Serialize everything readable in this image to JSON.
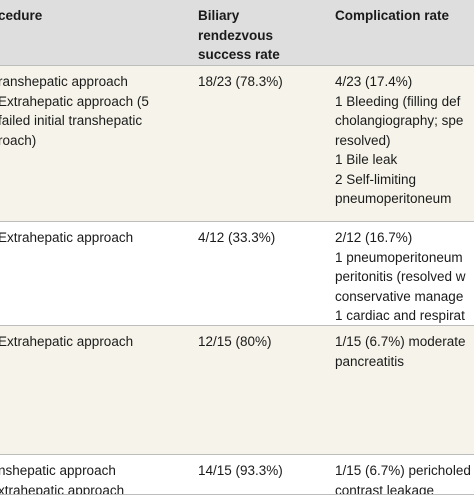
{
  "table": {
    "header": [
      [
        "cedure"
      ],
      [
        "Biliary",
        "rendezvous",
        "success rate"
      ],
      [
        "Complication rate"
      ]
    ],
    "rows": [
      [
        [
          "ranshepatic approach",
          "Extrahepatic approach (5",
          "failed initial transhepatic",
          "roach)"
        ],
        [
          "18/23 (78.3%)"
        ],
        [
          "4/23 (17.4%)",
          "1 Bleeding (filling def",
          "cholangiography; spe",
          "resolved)",
          "1 Bile leak",
          "2 Self-limiting",
          "pneumoperitoneum"
        ]
      ],
      [
        [
          "Extrahepatic approach"
        ],
        [
          "4/12 (33.3%)"
        ],
        [
          "2/12 (16.7%)",
          "1 pneumoperitoneum",
          "peritonitis (resolved w",
          "conservative manage",
          "1 cardiac and respirat"
        ]
      ],
      [
        [
          "Extrahepatic approach"
        ],
        [
          "12/15 (80%)"
        ],
        [
          "1/15 (6.7%) moderate",
          "pancreatitis"
        ]
      ],
      [
        [
          "nshepatic approach",
          "xtrahepatic approach"
        ],
        [
          "14/15 (93.3%)"
        ],
        [
          "1/15 (6.7%) pericholed",
          "contrast leakage"
        ]
      ]
    ]
  }
}
